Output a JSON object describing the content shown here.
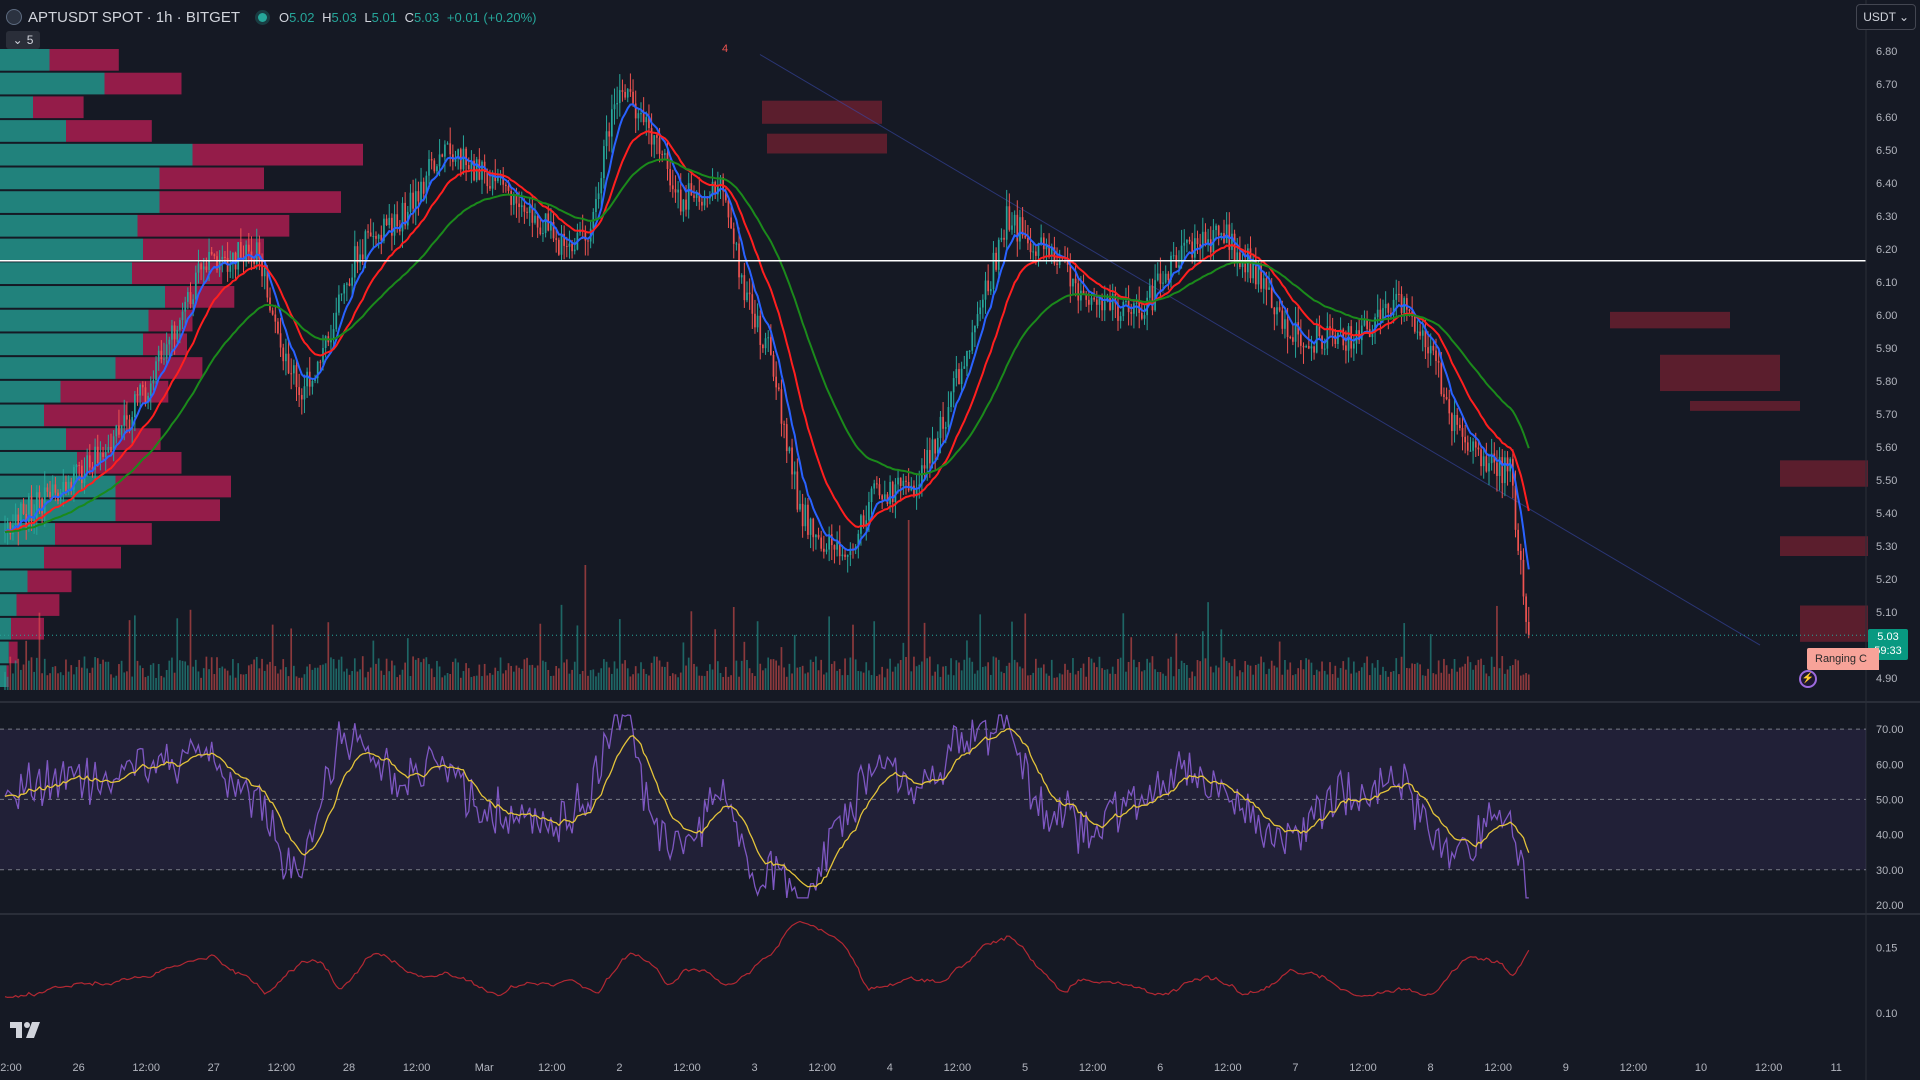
{
  "header": {
    "symbol": "APTUSDT SPOT · 1h · BITGET",
    "open_label": "O",
    "open": "5.02",
    "high_label": "H",
    "high": "5.03",
    "low_label": "L",
    "low": "5.01",
    "close_label": "C",
    "close": "5.03",
    "change": "+0.01 (+0.20%)"
  },
  "collapse_label": "5",
  "currency_label": "USDT",
  "price_tag": {
    "price": "5.03",
    "countdown": "59:33"
  },
  "ranging_label": "Ranging C",
  "colors": {
    "background": "#151924",
    "up": "#26a69a",
    "down": "#ef5350",
    "ema_fast": "#2962ff",
    "ema_mid": "#ff1f1f",
    "ema_slow": "#1b8a1b",
    "rsi": "#7e57c2",
    "rsi_ma": "#e3c33a",
    "lower_indicator": "#b22833"
  },
  "chart_data": [
    {
      "type": "candlestick",
      "name": "price",
      "series": [
        {
          "name": "ema_fast"
        },
        {
          "name": "ema_mid"
        },
        {
          "name": "ema_slow"
        }
      ],
      "x_ticks": [
        "2:00",
        "26",
        "12:00",
        "27",
        "12:00",
        "28",
        "12:00",
        "Mar",
        "12:00",
        "2",
        "12:00",
        "3",
        "12:00",
        "4",
        "12:00",
        "5",
        "12:00",
        "6",
        "12:00",
        "7",
        "12:00",
        "8",
        "12:00",
        "9",
        "12:00",
        "10",
        "12:00",
        "11"
      ],
      "y_ticks": [
        "6.80",
        "6.70",
        "6.60",
        "6.50",
        "6.40",
        "6.30",
        "6.20",
        "6.10",
        "6.00",
        "5.90",
        "5.80",
        "5.70",
        "5.60",
        "5.50",
        "5.40",
        "5.30",
        "5.20",
        "5.10",
        "5.03",
        "4.90"
      ],
      "ylim": [
        4.87,
        6.84
      ],
      "horizontal_line": 6.165,
      "anchors": [
        [
          0,
          5.35
        ],
        [
          15,
          5.45
        ],
        [
          40,
          5.6
        ],
        [
          55,
          5.8
        ],
        [
          75,
          6.15
        ],
        [
          95,
          6.2
        ],
        [
          105,
          5.9
        ],
        [
          112,
          5.75
        ],
        [
          120,
          5.9
        ],
        [
          133,
          6.2
        ],
        [
          150,
          6.3
        ],
        [
          165,
          6.5
        ],
        [
          185,
          6.4
        ],
        [
          200,
          6.3
        ],
        [
          212,
          6.2
        ],
        [
          220,
          6.25
        ],
        [
          232,
          6.7
        ],
        [
          240,
          6.6
        ],
        [
          255,
          6.35
        ],
        [
          270,
          6.4
        ],
        [
          278,
          6.1
        ],
        [
          290,
          5.85
        ],
        [
          300,
          5.4
        ],
        [
          318,
          5.25
        ],
        [
          328,
          5.45
        ],
        [
          345,
          5.48
        ],
        [
          357,
          5.75
        ],
        [
          368,
          6.0
        ],
        [
          378,
          6.3
        ],
        [
          390,
          6.2
        ],
        [
          410,
          6.05
        ],
        [
          428,
          6.0
        ],
        [
          445,
          6.2
        ],
        [
          460,
          6.25
        ],
        [
          470,
          6.15
        ],
        [
          485,
          5.95
        ],
        [
          497,
          5.92
        ],
        [
          515,
          5.95
        ],
        [
          525,
          6.05
        ],
        [
          540,
          5.85
        ],
        [
          545,
          5.7
        ],
        [
          553,
          5.58
        ],
        [
          562,
          5.55
        ],
        [
          568,
          5.52
        ],
        [
          575,
          5.0
        ]
      ],
      "volume_profile": [
        [
          0.45,
          0.63
        ],
        [
          0.95,
          0.7
        ],
        [
          0.3,
          0.46
        ],
        [
          0.6,
          0.78
        ],
        [
          1.75,
          1.55
        ],
        [
          1.45,
          0.95
        ],
        [
          1.45,
          1.65
        ],
        [
          1.25,
          1.38
        ],
        [
          1.3,
          1.1
        ],
        [
          1.2,
          0.82
        ],
        [
          1.5,
          0.63
        ],
        [
          1.35,
          0.4
        ],
        [
          1.3,
          0.4
        ],
        [
          1.05,
          0.79
        ],
        [
          0.55,
          0.98
        ],
        [
          0.4,
          0.75
        ],
        [
          0.6,
          0.86
        ],
        [
          0.7,
          0.95
        ],
        [
          1.05,
          1.05
        ],
        [
          1.05,
          0.95
        ],
        [
          0.5,
          0.88
        ],
        [
          0.4,
          0.7
        ],
        [
          0.25,
          0.4
        ],
        [
          0.15,
          0.39
        ],
        [
          0.1,
          0.3
        ],
        [
          0.08,
          0.08
        ],
        [
          0.06,
          0.02
        ]
      ],
      "supply_zones": [
        [
          5.96,
          6.01,
          1610,
          1730
        ],
        [
          5.77,
          5.88,
          1660,
          1780
        ],
        [
          5.71,
          5.74,
          1690,
          1800
        ],
        [
          5.48,
          5.56,
          1780,
          1868
        ],
        [
          5.27,
          5.33,
          1780,
          1868
        ],
        [
          5.01,
          5.12,
          1800,
          1868
        ],
        [
          6.58,
          6.65,
          762,
          882
        ],
        [
          6.49,
          6.55,
          767,
          887
        ]
      ],
      "trendline": [
        [
          0,
          6.79
        ],
        [
          1470,
          5.0
        ]
      ],
      "marker_label": "4"
    },
    {
      "type": "line",
      "name": "rsi",
      "series": [
        {
          "name": "rsi"
        },
        {
          "name": "rsi_ma"
        }
      ],
      "y_ticks": [
        "70.00",
        "60.00",
        "50.00",
        "40.00",
        "30.00",
        "20.00"
      ],
      "ylim": [
        18,
        74
      ],
      "bands": [
        30,
        50,
        70
      ]
    },
    {
      "type": "line",
      "name": "lower_indicator",
      "y_ticks": [
        "0.15",
        "0.10"
      ],
      "ylim": [
        0.07,
        0.175
      ]
    }
  ]
}
